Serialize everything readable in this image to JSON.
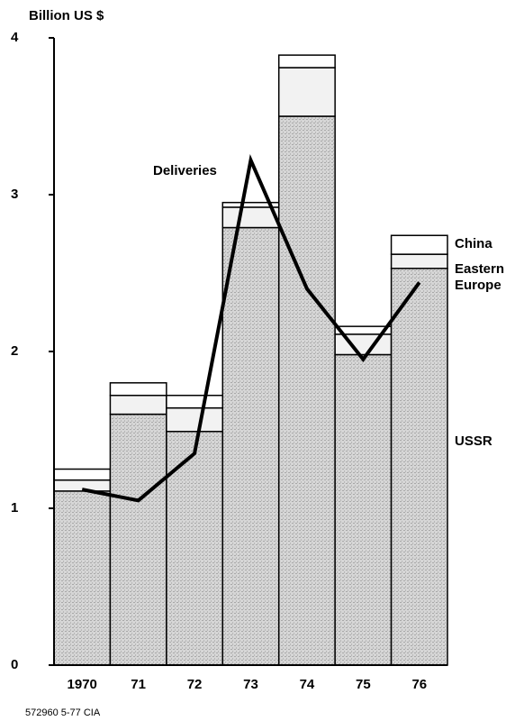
{
  "chart_data": {
    "type": "bar",
    "stacked": true,
    "y_label": "Billion US $",
    "footer": "572960 5-77 CIA",
    "categories": [
      "1970",
      "71",
      "72",
      "73",
      "74",
      "75",
      "76"
    ],
    "series": [
      {
        "name": "USSR",
        "color": "#c8c8c8",
        "values": [
          1.11,
          1.6,
          1.49,
          2.79,
          3.5,
          1.98,
          2.53
        ]
      },
      {
        "name": "Eastern Europe",
        "color": "#f2f2f2",
        "values": [
          0.07,
          0.12,
          0.15,
          0.13,
          0.31,
          0.13,
          0.09
        ]
      },
      {
        "name": "China",
        "color": "#ffffff",
        "values": [
          0.07,
          0.08,
          0.08,
          0.03,
          0.08,
          0.05,
          0.12
        ]
      },
      {
        "name": "Deliveries",
        "type": "line",
        "color": "#000000",
        "values": [
          1.12,
          1.05,
          1.35,
          3.22,
          2.4,
          1.95,
          2.44
        ]
      }
    ],
    "ylim": [
      0,
      4
    ],
    "yticks": [
      0,
      1,
      2,
      3,
      4
    ]
  }
}
